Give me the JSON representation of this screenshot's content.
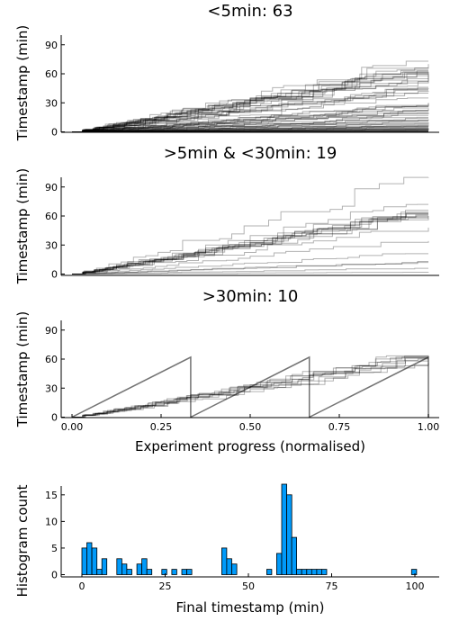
{
  "colors": {
    "line": "#000000",
    "bar": "#009AFA",
    "bar_edge": "#000000"
  },
  "chart_data": [
    {
      "type": "line",
      "title": "<5min: 63",
      "ylabel": "Timestamp (min)",
      "xlabel": "",
      "xlim": [
        0,
        1
      ],
      "ylim": [
        0,
        100
      ],
      "yticks": [
        "0",
        "30",
        "60",
        "90"
      ],
      "xticks": [],
      "series_count": 63,
      "final_values": [
        73,
        70,
        66,
        64,
        63,
        62,
        62,
        61,
        61,
        60,
        60,
        59,
        58,
        55,
        52,
        46,
        45,
        44,
        43,
        42,
        40,
        35,
        30,
        29,
        27,
        26,
        25,
        24,
        22,
        21,
        20,
        19,
        17,
        15,
        14,
        13,
        12,
        11,
        10,
        9,
        8,
        7,
        6,
        6,
        5,
        5,
        4,
        4,
        3,
        3,
        3,
        2,
        2,
        2,
        1,
        1,
        1,
        1,
        0,
        0,
        0,
        0,
        0
      ]
    },
    {
      "type": "line",
      "title": ">5min & <30min: 19",
      "ylabel": "Timestamp (min)",
      "xlabel": "",
      "xlim": [
        0,
        1
      ],
      "ylim": [
        0,
        100
      ],
      "yticks": [
        "0",
        "30",
        "60",
        "90"
      ],
      "xticks": [],
      "series_count": 19,
      "final_values": [
        100,
        72,
        66,
        64,
        63,
        62,
        62,
        61,
        60,
        60,
        59,
        58,
        48,
        34,
        21,
        13,
        12,
        6,
        2
      ]
    },
    {
      "type": "line",
      "title": ">30min: 10",
      "ylabel": "Timestamp (min)",
      "xlabel": "Experiment progress (normalised)",
      "xlim": [
        0,
        1
      ],
      "ylim": [
        0,
        100
      ],
      "yticks": [
        "0",
        "30",
        "60",
        "90"
      ],
      "xticks": [
        "0.00",
        "0.25",
        "0.50",
        "0.75",
        "1.00"
      ],
      "series_count": 10,
      "final_values": [
        64,
        63,
        62,
        62,
        61,
        61,
        60,
        58,
        56,
        53
      ]
    },
    {
      "type": "bar",
      "title": "",
      "ylabel": "Histogram count",
      "xlabel": "Final timestamp (min)",
      "xlim": [
        -5,
        104
      ],
      "ylim": [
        0,
        18
      ],
      "yticks": [
        "0",
        "5",
        "10",
        "15"
      ],
      "xticks": [
        "0",
        "25",
        "50",
        "75",
        "100"
      ],
      "bin_width": 1.5,
      "bin_starts": [
        0,
        1.5,
        3,
        4.5,
        6,
        7.5,
        9,
        10.5,
        12,
        13.5,
        15,
        16.5,
        18,
        19.5,
        21,
        22.5,
        24,
        25.5,
        27,
        28.5,
        30,
        31.5,
        33,
        34.5,
        36,
        37.5,
        39,
        40.5,
        42,
        43.5,
        45,
        46.5,
        48,
        49.5,
        51,
        52.5,
        54,
        55.5,
        57,
        58.5,
        60,
        61.5,
        63,
        64.5,
        66,
        67.5,
        69,
        70.5,
        72,
        73.5,
        75,
        76.5,
        78,
        79.5,
        81,
        82.5,
        84,
        85.5,
        87,
        88.5,
        90,
        91.5,
        93,
        94.5,
        96,
        97.5,
        99
      ],
      "counts": [
        5,
        6,
        5,
        1,
        3,
        0,
        0,
        3,
        2,
        1,
        0,
        2,
        3,
        1,
        0,
        0,
        1,
        0,
        1,
        0,
        1,
        1,
        0,
        0,
        0,
        0,
        0,
        0,
        5,
        3,
        2,
        0,
        0,
        0,
        0,
        0,
        0,
        1,
        0,
        4,
        17,
        15,
        7,
        1,
        1,
        1,
        1,
        1,
        1,
        0,
        0,
        0,
        0,
        0,
        0,
        0,
        0,
        0,
        0,
        0,
        0,
        0,
        0,
        0,
        0,
        0,
        1
      ]
    }
  ]
}
